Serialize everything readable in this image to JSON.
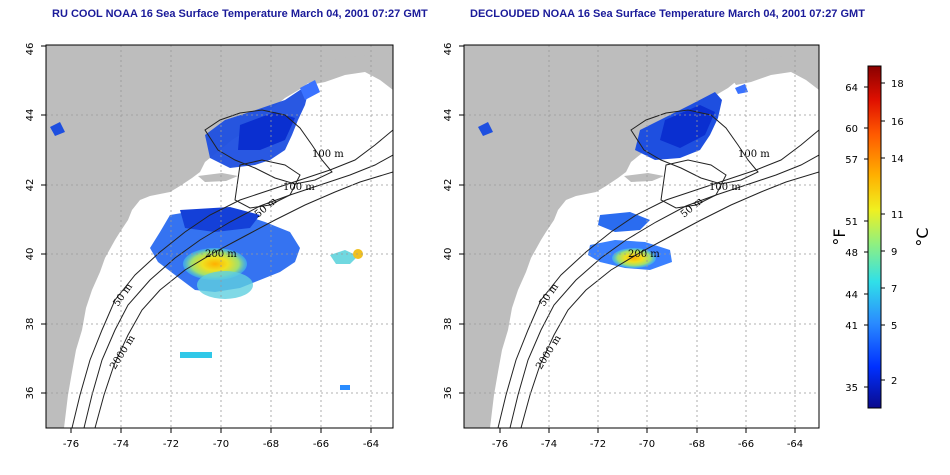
{
  "colors": {
    "land": "#bdbdbd",
    "ocean": "#ffffff",
    "frame": "#000000",
    "title": "#1a1a99",
    "grid": "#999999"
  },
  "axes": {
    "x_ticks": [
      "-76",
      "-74",
      "-72",
      "-70",
      "-68",
      "-66",
      "-64"
    ],
    "y_ticks": [
      "36",
      "38",
      "40",
      "42",
      "44",
      "46"
    ]
  },
  "panels": [
    {
      "title": "RU COOL NOAA 16 Sea Surface Temperature March 04, 2001 07:27 GMT",
      "contour_labels": [
        "100 m",
        "100 m",
        "50 m",
        "200 m",
        "50 m",
        "2000 m"
      ]
    },
    {
      "title": "DECLOUDED NOAA 16 Sea Surface Temperature March 04, 2001 07:27 GMT",
      "contour_labels": [
        "100 m",
        "100 m",
        "50 m",
        "200 m",
        "50 m",
        "2000 m"
      ]
    }
  ],
  "colorbar": {
    "fahrenheit_label": "°F",
    "celsius_label": "°C",
    "fahrenheit_ticks": [
      "64",
      "60",
      "57",
      "51",
      "48",
      "44",
      "41",
      "35"
    ],
    "celsius_ticks": [
      "18",
      "16",
      "14",
      "11",
      "9",
      "7",
      "5",
      "2"
    ]
  }
}
